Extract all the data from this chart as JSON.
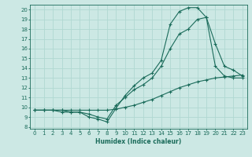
{
  "xlabel": "Humidex (Indice chaleur)",
  "bg_color": "#cce8e4",
  "grid_color": "#b0d8d2",
  "line_color": "#1a6b5a",
  "xlim": [
    -0.5,
    23.5
  ],
  "ylim": [
    7.8,
    20.5
  ],
  "xticks": [
    0,
    1,
    2,
    3,
    4,
    5,
    6,
    7,
    8,
    9,
    10,
    11,
    12,
    13,
    14,
    15,
    16,
    17,
    18,
    19,
    20,
    21,
    22,
    23
  ],
  "yticks": [
    8,
    9,
    10,
    11,
    12,
    13,
    14,
    15,
    16,
    17,
    18,
    19,
    20
  ],
  "line1_x": [
    0,
    1,
    2,
    3,
    4,
    5,
    6,
    7,
    8,
    9,
    10,
    11,
    12,
    13,
    14,
    15,
    16,
    17,
    18,
    19,
    20,
    21,
    22,
    23
  ],
  "line1_y": [
    9.7,
    9.7,
    9.7,
    9.7,
    9.5,
    9.5,
    9.0,
    8.8,
    8.5,
    9.9,
    11.2,
    12.2,
    13.0,
    13.5,
    14.8,
    18.5,
    19.8,
    20.2,
    20.2,
    19.2,
    14.2,
    13.2,
    13.0,
    13.0
  ],
  "line2_x": [
    0,
    1,
    2,
    3,
    4,
    5,
    6,
    7,
    8,
    9,
    10,
    11,
    12,
    13,
    14,
    15,
    16,
    17,
    18,
    19,
    20,
    21,
    22,
    23
  ],
  "line2_y": [
    9.7,
    9.7,
    9.7,
    9.5,
    9.5,
    9.5,
    9.3,
    9.0,
    8.8,
    10.2,
    11.0,
    11.8,
    12.3,
    13.0,
    14.2,
    16.0,
    17.5,
    18.0,
    19.0,
    19.2,
    16.5,
    14.2,
    13.8,
    13.2
  ],
  "line3_x": [
    0,
    1,
    2,
    3,
    4,
    5,
    6,
    7,
    8,
    9,
    10,
    11,
    12,
    13,
    14,
    15,
    16,
    17,
    18,
    19,
    20,
    21,
    22,
    23
  ],
  "line3_y": [
    9.7,
    9.7,
    9.7,
    9.7,
    9.7,
    9.7,
    9.7,
    9.7,
    9.7,
    9.8,
    10.0,
    10.2,
    10.5,
    10.8,
    11.2,
    11.6,
    12.0,
    12.3,
    12.6,
    12.8,
    13.0,
    13.1,
    13.2,
    13.3
  ]
}
